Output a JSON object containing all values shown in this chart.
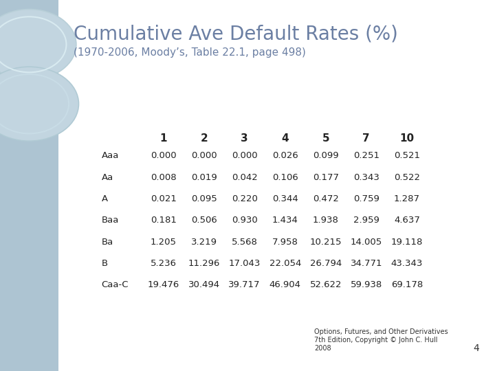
{
  "title": "Cumulative Ave Default Rates (%)",
  "subtitle": "(1970-2006, Moody’s, Table 22.1, page 498)",
  "col_headers": [
    "1",
    "2",
    "3",
    "4",
    "5",
    "7",
    "10"
  ],
  "row_headers": [
    "Aaa",
    "Aa",
    "A",
    "Baa",
    "Ba",
    "B",
    "Caa-C"
  ],
  "table_data": [
    [
      0.0,
      0.0,
      0.0,
      0.026,
      0.099,
      0.251,
      0.521
    ],
    [
      0.008,
      0.019,
      0.042,
      0.106,
      0.177,
      0.343,
      0.522
    ],
    [
      0.021,
      0.095,
      0.22,
      0.344,
      0.472,
      0.759,
      1.287
    ],
    [
      0.181,
      0.506,
      0.93,
      1.434,
      1.938,
      2.959,
      4.637
    ],
    [
      1.205,
      3.219,
      5.568,
      7.958,
      10.215,
      14.005,
      19.118
    ],
    [
      5.236,
      11.296,
      17.043,
      22.054,
      26.794,
      34.771,
      43.343
    ],
    [
      19.476,
      30.494,
      39.717,
      46.904,
      52.622,
      59.938,
      69.178
    ]
  ],
  "title_color": "#6b7fa3",
  "subtitle_color": "#6b7fa3",
  "header_color": "#222222",
  "data_color": "#222222",
  "row_label_color": "#222222",
  "bg_color": "#ffffff",
  "left_panel_color": "#adc4d2",
  "circle_face": "#c2d5e0",
  "circle_edge": "#d8e8f0",
  "footer_line1": "Options, Futures, and Other Derivatives",
  "footer_line2": "7th Edition, Copyright © John C. Hull",
  "footer_line3": "2008",
  "page_number": "4",
  "title_fontsize": 20,
  "subtitle_fontsize": 11,
  "header_fontsize": 11,
  "data_fontsize": 9.5,
  "row_label_fontsize": 9.5,
  "footer_fontsize": 7
}
